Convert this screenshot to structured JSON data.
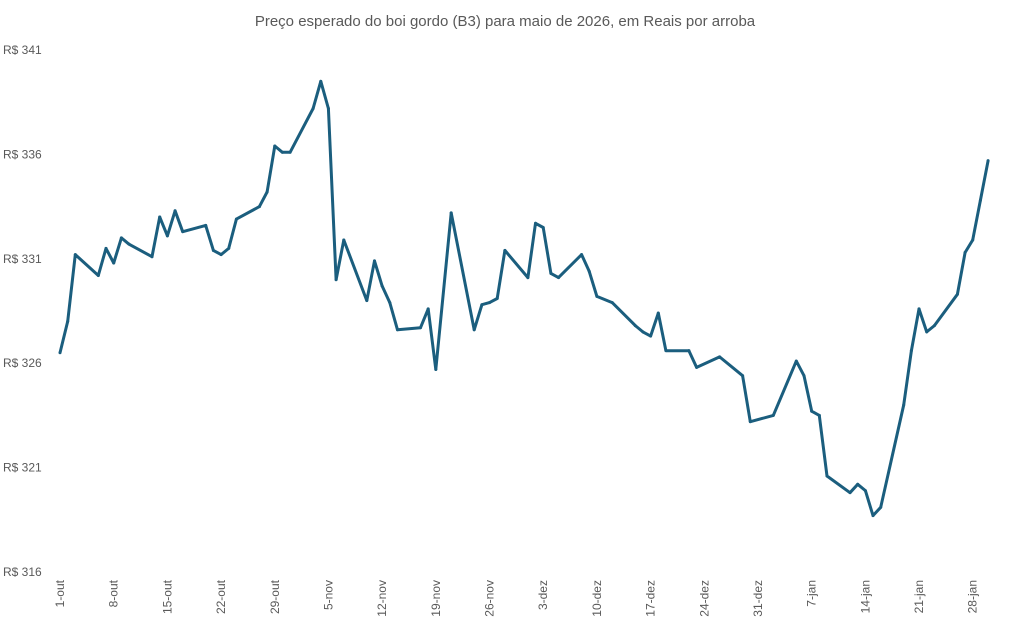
{
  "chart_data": {
    "type": "line",
    "title": "Preço esperado do boi gordo (B3) para maio de 2026, em Reais por arroba",
    "xlabel": "",
    "ylabel": "",
    "ylim": [
      316,
      341
    ],
    "y_ticks": [
      316,
      321,
      326,
      331,
      336,
      341
    ],
    "y_tick_prefix": "R$ ",
    "x_tick_labels": [
      "1-out",
      "8-out",
      "15-out",
      "22-out",
      "29-out",
      "5-nov",
      "12-nov",
      "19-nov",
      "26-nov",
      "3-dez",
      "10-dez",
      "17-dez",
      "24-dez",
      "31-dez",
      "7-jan",
      "14-jan",
      "21-jan",
      "28-jan"
    ],
    "grid": false,
    "legend": "none",
    "line_color": "#1B5E7E",
    "x": [
      "1-out",
      "2-out",
      "3-out",
      "6-out",
      "7-out",
      "8-out",
      "9-out",
      "10-out",
      "13-out",
      "14-out",
      "15-out",
      "16-out",
      "17-out",
      "20-out",
      "21-out",
      "22-out",
      "23-out",
      "24-out",
      "27-out",
      "28-out",
      "29-out",
      "30-out",
      "31-out",
      "3-nov",
      "4-nov",
      "5-nov",
      "6-nov",
      "7-nov",
      "10-nov",
      "11-nov",
      "12-nov",
      "13-nov",
      "14-nov",
      "17-nov",
      "18-nov",
      "19-nov",
      "21-nov",
      "24-nov",
      "25-nov",
      "26-nov",
      "27-nov",
      "28-nov",
      "1-dez",
      "2-dez",
      "3-dez",
      "4-dez",
      "5-dez",
      "8-dez",
      "9-dez",
      "10-dez",
      "12-dez",
      "15-dez",
      "16-dez",
      "17-dez",
      "18-dez",
      "19-dez",
      "22-dez",
      "23-dez",
      "26-dez",
      "29-dez",
      "30-dez",
      "2-jan",
      "5-jan",
      "6-jan",
      "7-jan",
      "8-jan",
      "9-jan",
      "12-jan",
      "13-jan",
      "14-jan",
      "15-jan",
      "16-jan",
      "19-jan",
      "20-jan",
      "21-jan",
      "22-jan",
      "23-jan",
      "26-jan",
      "27-jan",
      "28-jan",
      "29-jan",
      "30-jan"
    ],
    "values": [
      326.5,
      328.0,
      331.2,
      330.2,
      331.5,
      330.8,
      332.0,
      331.7,
      331.1,
      333.0,
      332.1,
      333.3,
      332.3,
      332.6,
      331.4,
      331.2,
      331.5,
      332.9,
      333.5,
      334.2,
      336.4,
      336.1,
      336.1,
      338.2,
      339.5,
      338.2,
      330.0,
      331.9,
      329.0,
      330.9,
      329.7,
      328.9,
      327.6,
      327.7,
      328.6,
      325.7,
      333.2,
      327.6,
      328.8,
      328.9,
      329.1,
      331.4,
      330.1,
      332.7,
      332.5,
      330.3,
      330.1,
      331.2,
      330.4,
      329.2,
      328.9,
      327.8,
      327.5,
      327.3,
      328.4,
      326.6,
      326.6,
      325.8,
      326.3,
      325.4,
      323.2,
      323.5,
      326.1,
      325.4,
      323.7,
      323.5,
      320.6,
      319.8,
      320.2,
      319.9,
      318.7,
      319.1,
      324.0,
      326.6,
      328.6,
      327.5,
      327.8,
      329.3,
      331.3,
      331.9,
      333.8,
      335.7
    ]
  }
}
